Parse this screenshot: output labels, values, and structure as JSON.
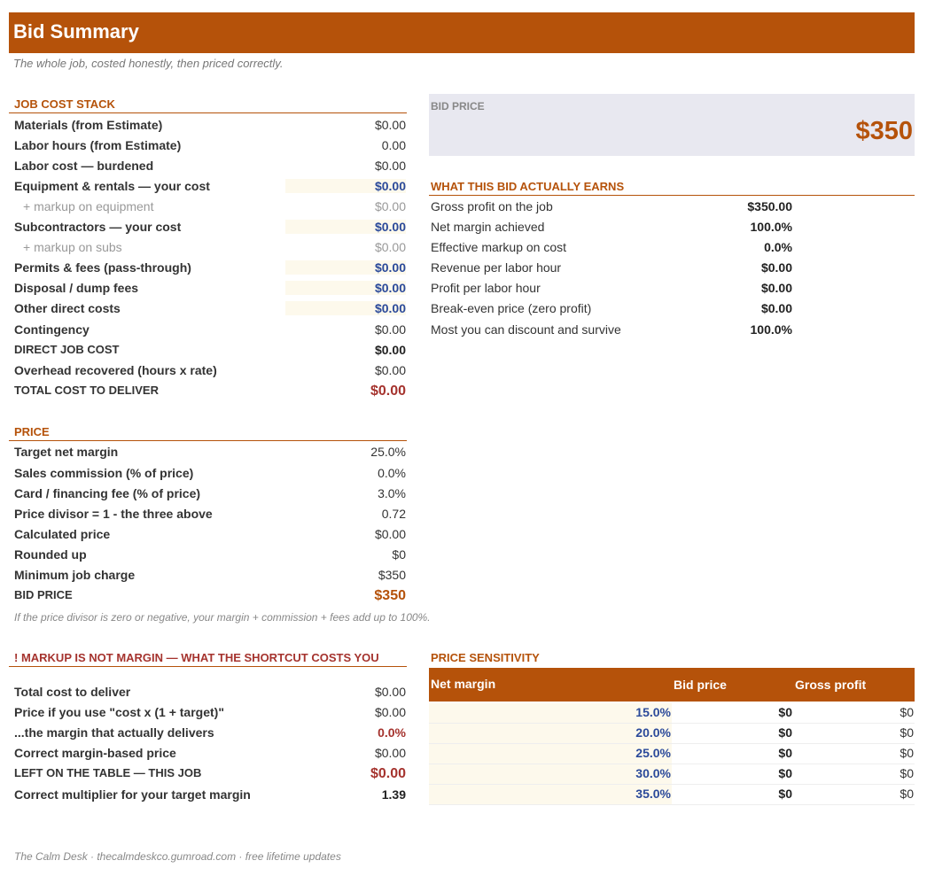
{
  "header": {
    "title": "Bid Summary",
    "subtitle": "The whole job, costed honestly, then priced correctly."
  },
  "job_cost_stack": {
    "heading": "JOB COST STACK",
    "rows": [
      {
        "label": "Materials  (from Estimate)",
        "value": "$0.00"
      },
      {
        "label": "Labor hours  (from Estimate)",
        "value": "0.00"
      },
      {
        "label": "Labor cost — burdened",
        "value": "$0.00"
      },
      {
        "label": "Equipment & rentals — your cost",
        "value": "$0.00"
      },
      {
        "label": "+ markup on equipment",
        "value": "$0.00"
      },
      {
        "label": "Subcontractors — your cost",
        "value": "$0.00"
      },
      {
        "label": "+ markup on subs",
        "value": "$0.00"
      },
      {
        "label": "Permits & fees  (pass-through)",
        "value": "$0.00"
      },
      {
        "label": "Disposal / dump fees",
        "value": "$0.00"
      },
      {
        "label": "Other direct costs",
        "value": "$0.00"
      },
      {
        "label": "Contingency",
        "value": "$0.00"
      },
      {
        "label": "DIRECT JOB COST",
        "value": "$0.00"
      },
      {
        "label": "Overhead recovered  (hours x rate)",
        "value": "$0.00"
      },
      {
        "label": "TOTAL COST TO DELIVER",
        "value": "$0.00"
      }
    ]
  },
  "bid_price_box": {
    "label": "BID PRICE",
    "value": "$350"
  },
  "earns": {
    "heading": "WHAT THIS BID ACTUALLY EARNS",
    "rows": [
      {
        "label": "Gross profit on the job",
        "value": "$350.00"
      },
      {
        "label": "Net margin achieved",
        "value": "100.0%"
      },
      {
        "label": "Effective markup on cost",
        "value": "0.0%"
      },
      {
        "label": "Revenue per labor hour",
        "value": "$0.00"
      },
      {
        "label": "Profit per labor hour",
        "value": "$0.00"
      },
      {
        "label": "Break-even price (zero profit)",
        "value": "$0.00"
      },
      {
        "label": "Most you can discount and survive",
        "value": "100.0%"
      }
    ]
  },
  "price": {
    "heading": "PRICE",
    "rows": [
      {
        "label": "Target net margin",
        "value": "25.0%"
      },
      {
        "label": "Sales commission (% of price)",
        "value": "0.0%"
      },
      {
        "label": "Card / financing fee (% of price)",
        "value": "3.0%"
      },
      {
        "label": "Price divisor  =  1 - the three above",
        "value": "0.72"
      },
      {
        "label": "Calculated price",
        "value": "$0.00"
      },
      {
        "label": "Rounded up",
        "value": "$0"
      },
      {
        "label": "Minimum job charge",
        "value": "$350"
      },
      {
        "label": "BID PRICE",
        "value": "$350"
      }
    ],
    "note": "If the price divisor is zero or negative, your margin + commission + fees add up to 100%."
  },
  "markup": {
    "heading": "!  MARKUP IS NOT MARGIN — WHAT THE SHORTCUT COSTS YOU",
    "rows": [
      {
        "label": "Total cost to deliver",
        "value": "$0.00"
      },
      {
        "label": "Price if you use \"cost x (1 + target)\"",
        "value": "$0.00"
      },
      {
        "label": "...the margin that actually delivers",
        "value": "0.0%"
      },
      {
        "label": "Correct margin-based price",
        "value": "$0.00"
      },
      {
        "label": "LEFT ON THE TABLE — THIS JOB",
        "value": "$0.00"
      },
      {
        "label": "Correct multiplier for your target margin",
        "value": "1.39"
      }
    ]
  },
  "sensitivity": {
    "heading": "PRICE SENSITIVITY",
    "columns": [
      "Net margin",
      "Bid price",
      "Gross profit"
    ],
    "rows": [
      {
        "margin": "15.0%",
        "bid": "$0",
        "profit": "$0"
      },
      {
        "margin": "20.0%",
        "bid": "$0",
        "profit": "$0"
      },
      {
        "margin": "25.0%",
        "bid": "$0",
        "profit": "$0"
      },
      {
        "margin": "30.0%",
        "bid": "$0",
        "profit": "$0"
      },
      {
        "margin": "35.0%",
        "bid": "$0",
        "profit": "$0"
      }
    ]
  },
  "footer": "The Calm Desk  ·  thecalmdeskco.gumroad.com  ·  free lifetime updates"
}
